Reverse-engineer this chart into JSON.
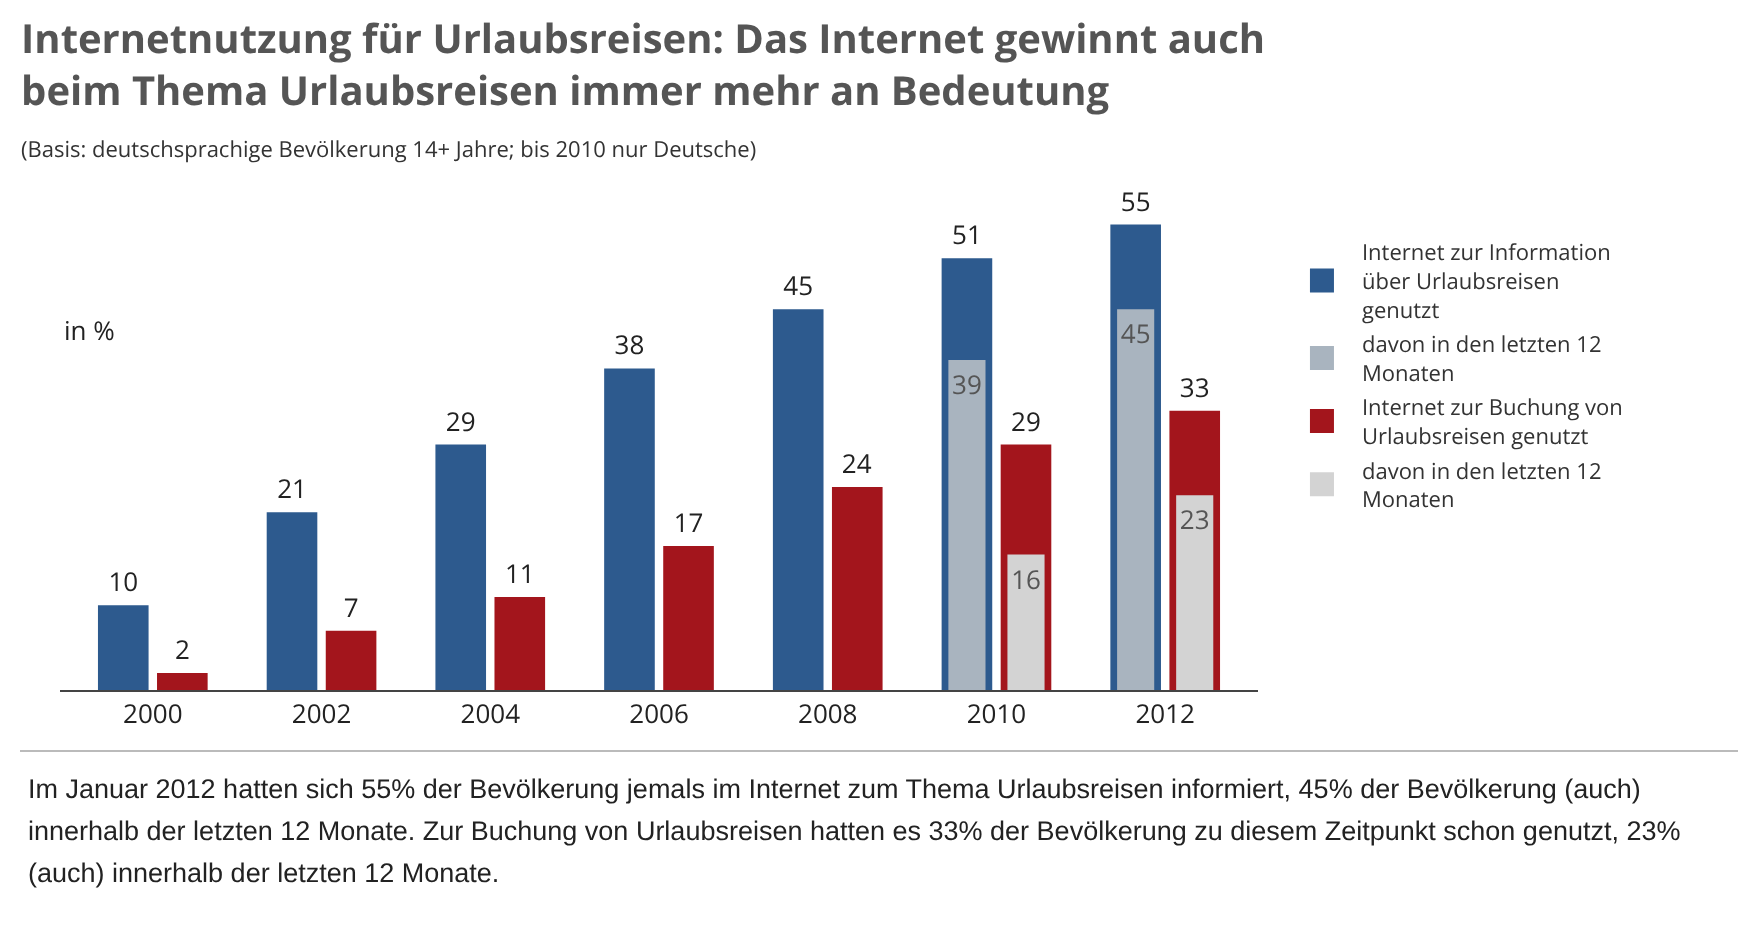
{
  "chart_data": {
    "type": "bar",
    "title": "Internetnutzung für Urlaubsreisen: Das Internet gewinnt auch beim Thema Urlaubsreisen immer mehr an Bedeutung",
    "subtitle": "(Basis: deutschsprachige Bevölkerung 14+ Jahre; bis 2010 nur Deutsche)",
    "ylabel": "in %",
    "categories": [
      "2000",
      "2002",
      "2004",
      "2006",
      "2008",
      "2010",
      "2012"
    ],
    "series": [
      {
        "name": "Internet zur Information über Urlaubsreisen genutzt",
        "color": "#2d5a8e",
        "values": [
          10,
          21,
          29,
          38,
          45,
          51,
          55
        ]
      },
      {
        "name": "davon in den letzten 12 Monaten",
        "color": "#a9b4bf",
        "values": [
          null,
          null,
          null,
          null,
          null,
          39,
          45
        ]
      },
      {
        "name": "Internet zur Buchung von Urlaubsreisen genutzt",
        "color": "#a3151c",
        "values": [
          2,
          7,
          11,
          17,
          24,
          29,
          33
        ]
      },
      {
        "name": "davon in den letzten 12 Monaten",
        "color": "#d3d3d3",
        "values": [
          null,
          null,
          null,
          null,
          null,
          16,
          23
        ]
      }
    ],
    "data_labels": true,
    "tick_labels": "x",
    "grid": false,
    "legend": "right",
    "annotations": [
      "Im Januar 2012 hatten sich 55% der Bevölkerung jemals im Internet zum Thema Urlaubsreisen informiert, 45% der Bevölkerung (auch) innerhalb der letzten 12 Monate. Zur Buchung von Urlaubsreisen hatten es 33% der Bevölkerung zu diesem Zeitpunkt schon genutzt, 23% (auch) innerhalb der letzten 12 Monate."
    ]
  }
}
